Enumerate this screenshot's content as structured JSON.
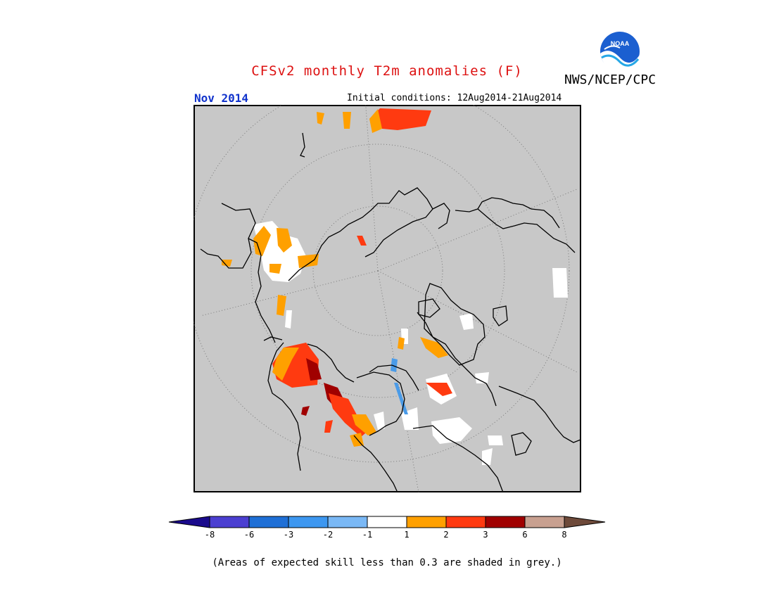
{
  "header": {
    "title": "CFSv2 monthly T2m anomalies (F)",
    "agency": "NWS/NCEP/CPC",
    "logo_text": "NOAA",
    "month": "Nov 2014",
    "initial_conditions": "Initial conditions: 12Aug2014-21Aug2014"
  },
  "legend": {
    "labels": [
      "-8",
      "-6",
      "-3",
      "-2",
      "-1",
      "1",
      "2",
      "3",
      "6",
      "8"
    ],
    "colors": [
      "#1a0a8c",
      "#4b3fd1",
      "#1f6fd6",
      "#3d97f0",
      "#7ab8f5",
      "#ffffff",
      "#ffa000",
      "#ff3a10",
      "#a00000",
      "#c8a090",
      "#6e4a3a"
    ]
  },
  "colors": {
    "title": "#dd1111",
    "month": "#1133cc",
    "map_background": "#c8c8c8",
    "land_outline": "#000000"
  },
  "footnote": "(Areas of expected skill less than 0.3 are shaded in grey.)"
}
